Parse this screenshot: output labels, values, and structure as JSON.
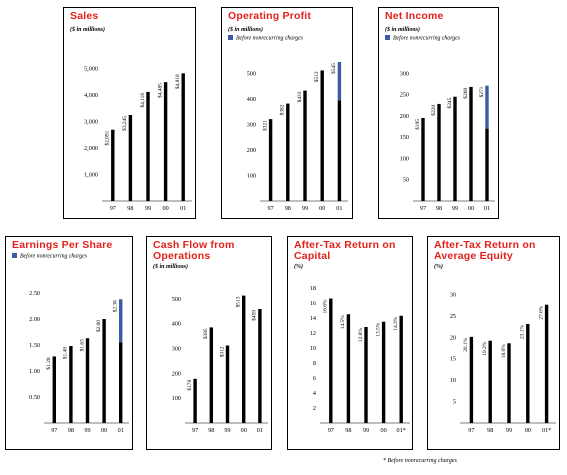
{
  "chart_data": [
    {
      "type": "bar",
      "title": "Sales",
      "subtitle": "($ in millions)",
      "categories": [
        "97",
        "98",
        "99",
        "00",
        "01"
      ],
      "values": [
        2691,
        3245,
        4116,
        4485,
        4818
      ],
      "data_labels": [
        "$2,691",
        "$3,245",
        "$4,116",
        "$4,485",
        "$4,818"
      ],
      "ylim": [
        0,
        6000
      ],
      "yticks": [
        "1,000",
        "2,000",
        "3,000",
        "4,000",
        "5,000"
      ],
      "ytick_values": [
        1000,
        2000,
        3000,
        4000,
        5000
      ]
    },
    {
      "type": "bar",
      "title": "Operating Profit",
      "subtitle": "($ in millions)",
      "legend": "Before nonrecurring charges",
      "categories": [
        "97",
        "98",
        "99",
        "00",
        "01"
      ],
      "values": [
        321,
        382,
        433,
        512,
        545
      ],
      "base_values": [
        321,
        382,
        433,
        512,
        395
      ],
      "data_labels": [
        "$321",
        "$382",
        "$433",
        "$512",
        "$545"
      ],
      "ylim": [
        0,
        600
      ],
      "yticks": [
        "100",
        "200",
        "300",
        "400",
        "500"
      ],
      "ytick_values": [
        100,
        200,
        300,
        400,
        500
      ]
    },
    {
      "type": "bar",
      "title": "Net Income",
      "subtitle": "($ in millions)",
      "legend": "Before nonrecurring charges",
      "categories": [
        "97",
        "98",
        "99",
        "00",
        "01"
      ],
      "values": [
        195,
        228,
        245,
        268,
        271
      ],
      "base_values": [
        195,
        228,
        245,
        268,
        170
      ],
      "data_labels": [
        "$195",
        "$228",
        "$245",
        "$268",
        "$271"
      ],
      "ylim": [
        0,
        350
      ],
      "yticks": [
        "50",
        "100",
        "150",
        "200",
        "250",
        "300"
      ],
      "ytick_values": [
        50,
        100,
        150,
        200,
        250,
        300
      ]
    },
    {
      "type": "bar",
      "title": "Earnings Per Share",
      "legend": "Before nonrecurring charges",
      "categories": [
        "97",
        "98",
        "99",
        "00",
        "01"
      ],
      "values": [
        1.28,
        1.48,
        1.63,
        2.0,
        2.38
      ],
      "base_values": [
        1.28,
        1.48,
        1.63,
        2.0,
        1.55
      ],
      "data_labels": [
        "$1.28",
        "$1.48",
        "$1.63",
        "$2.00",
        "$2.38"
      ],
      "ylim": [
        0,
        3.0
      ],
      "yticks": [
        "0.50",
        "1.00",
        "1.50",
        "2.00",
        "2.50"
      ],
      "ytick_values": [
        0.5,
        1.0,
        1.5,
        2.0,
        2.5
      ]
    },
    {
      "type": "bar",
      "title": "Cash Flow from Operations",
      "subtitle": "($ in millions)",
      "categories": [
        "97",
        "98",
        "99",
        "00",
        "01"
      ],
      "values": [
        178,
        385,
        312,
        513,
        459
      ],
      "data_labels": [
        "$178",
        "$385",
        "$312",
        "$513",
        "$459"
      ],
      "ylim": [
        0,
        600
      ],
      "yticks": [
        "100",
        "200",
        "300",
        "400",
        "500"
      ],
      "ytick_values": [
        100,
        200,
        300,
        400,
        500
      ]
    },
    {
      "type": "bar",
      "title": "After-Tax Return on Capital",
      "subtitle": "(%)",
      "categories": [
        "97",
        "98",
        "99",
        "00",
        "01*"
      ],
      "values": [
        16.6,
        14.5,
        12.8,
        13.5,
        14.3
      ],
      "data_labels": [
        "16.6%",
        "14.5%",
        "12.8%",
        "13.5%",
        "14.3%"
      ],
      "ylim": [
        0,
        20
      ],
      "yticks": [
        "2",
        "4",
        "6",
        "8",
        "10",
        "12",
        "14",
        "16",
        "18"
      ],
      "ytick_values": [
        2,
        4,
        6,
        8,
        10,
        12,
        14,
        16,
        18
      ]
    },
    {
      "type": "bar",
      "title": "After-Tax Return on Average Equity",
      "subtitle": "(%)",
      "categories": [
        "97",
        "98",
        "99",
        "00",
        "01*"
      ],
      "values": [
        20.1,
        19.2,
        18.6,
        23.1,
        27.6
      ],
      "data_labels": [
        "20.1%",
        "19.2%",
        "18.6%",
        "23.1%",
        "27.6%"
      ],
      "ylim": [
        0,
        35
      ],
      "yticks": [
        "5",
        "10",
        "15",
        "20",
        "25",
        "30"
      ],
      "ytick_values": [
        5,
        10,
        15,
        20,
        25,
        30
      ]
    }
  ],
  "footnote": "* Before nonrecurring charges",
  "colors": {
    "title": "#e3211c",
    "bar": "#000000",
    "nonrecurring": "#3b5aa8"
  }
}
